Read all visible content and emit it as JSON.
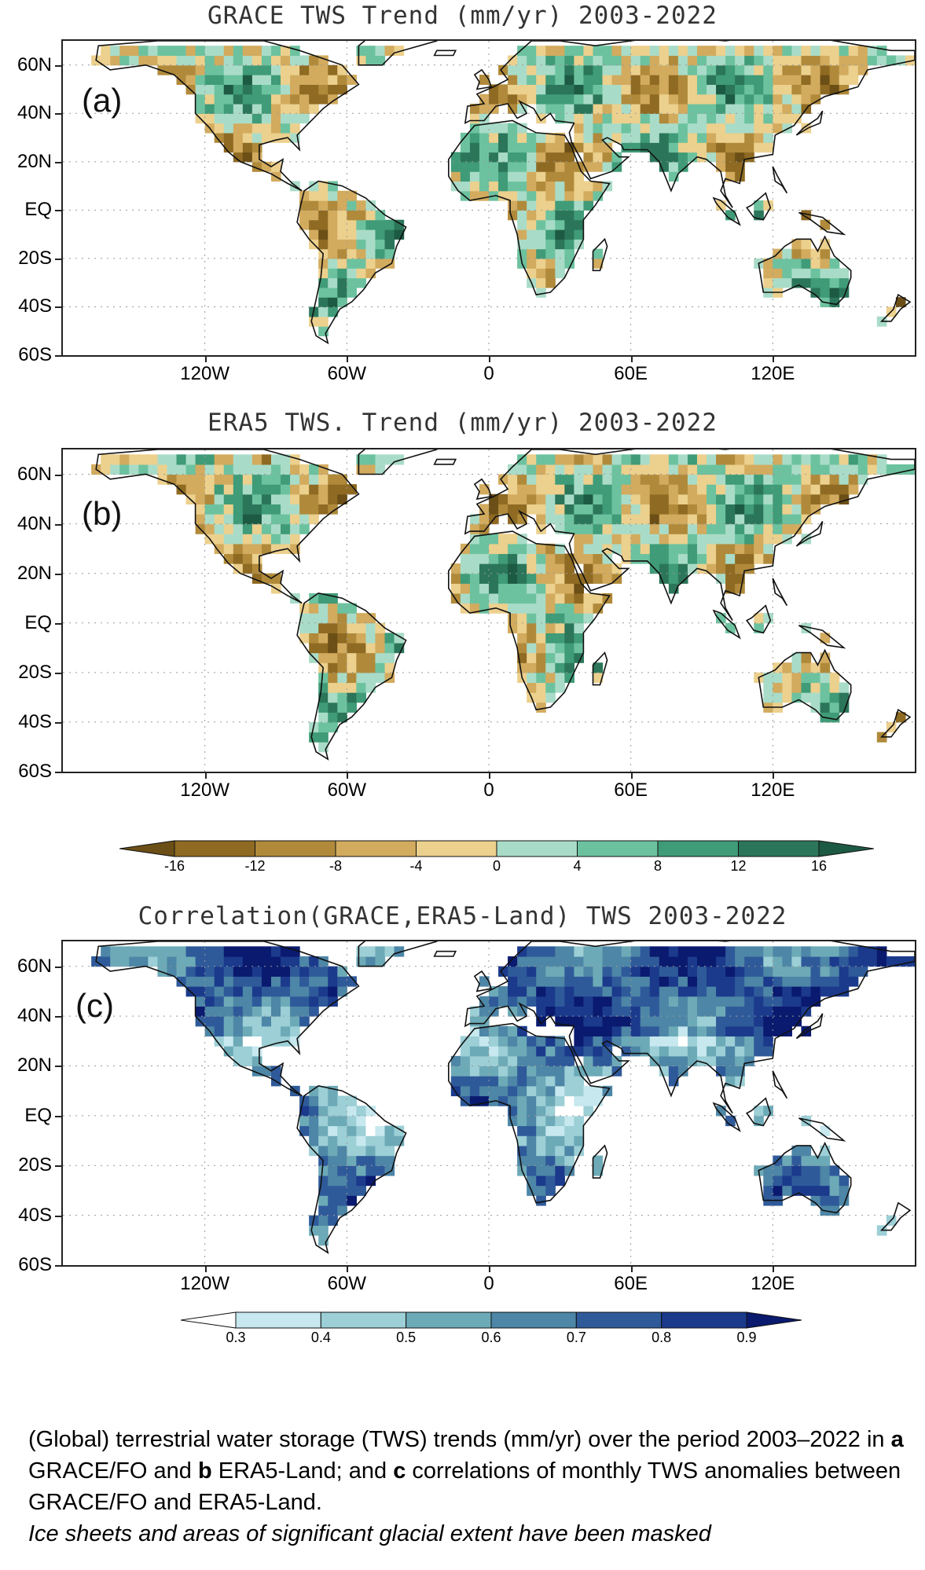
{
  "panels": [
    {
      "title": "GRACE TWS  Trend (mm/yr) 2003-2022",
      "letter": "(a)",
      "palette": "trend",
      "seed": 11
    },
    {
      "title": "ERA5 TWS. Trend (mm/yr) 2003-2022",
      "letter": "(b)",
      "palette": "trend",
      "seed": 23
    },
    {
      "title": "Correlation(GRACE,ERA5-Land) TWS  2003-2022",
      "letter": "(c)",
      "palette": "corr",
      "seed": 37
    }
  ],
  "lat_ticks": [
    "60N",
    "40N",
    "20N",
    "EQ",
    "20S",
    "40S",
    "60S"
  ],
  "lon_ticks": [
    "120W",
    "60W",
    "0",
    "60E",
    "120E"
  ],
  "trend_colorbar": {
    "labels": [
      "-16",
      "-12",
      "-8",
      "-4",
      "0",
      "4",
      "8",
      "12",
      "16"
    ],
    "colors": [
      "#6b4f16",
      "#8f6a22",
      "#b08a3a",
      "#d2ab5e",
      "#ecd08d",
      "#a9dcc8",
      "#6cc29f",
      "#3f9b78",
      "#2b765a",
      "#1d5a44"
    ]
  },
  "corr_colorbar": {
    "labels": [
      "0.3",
      "0.4",
      "0.5",
      "0.6",
      "0.7",
      "0.8",
      "0.9"
    ],
    "colors": [
      "#ffffff",
      "#c6e8ee",
      "#9ccfd6",
      "#6daab7",
      "#4d86a6",
      "#2f5a9a",
      "#1b3a8c",
      "#0a1a6e"
    ]
  },
  "caption": {
    "line1_pre": "(Global) terrestrial water storage (TWS) trends (mm/yr) over the period 2003–2022 in ",
    "a": "a",
    "mid1": " GRACE/FO and ",
    "b": "b",
    "mid2": " ERA5-Land; and ",
    "c": "c",
    "line_end": " correlations of monthly TWS anomalies between GRACE/FO and ERA5-Land.",
    "italic": "Ice sheets and areas of significant glacial extent have been masked"
  }
}
